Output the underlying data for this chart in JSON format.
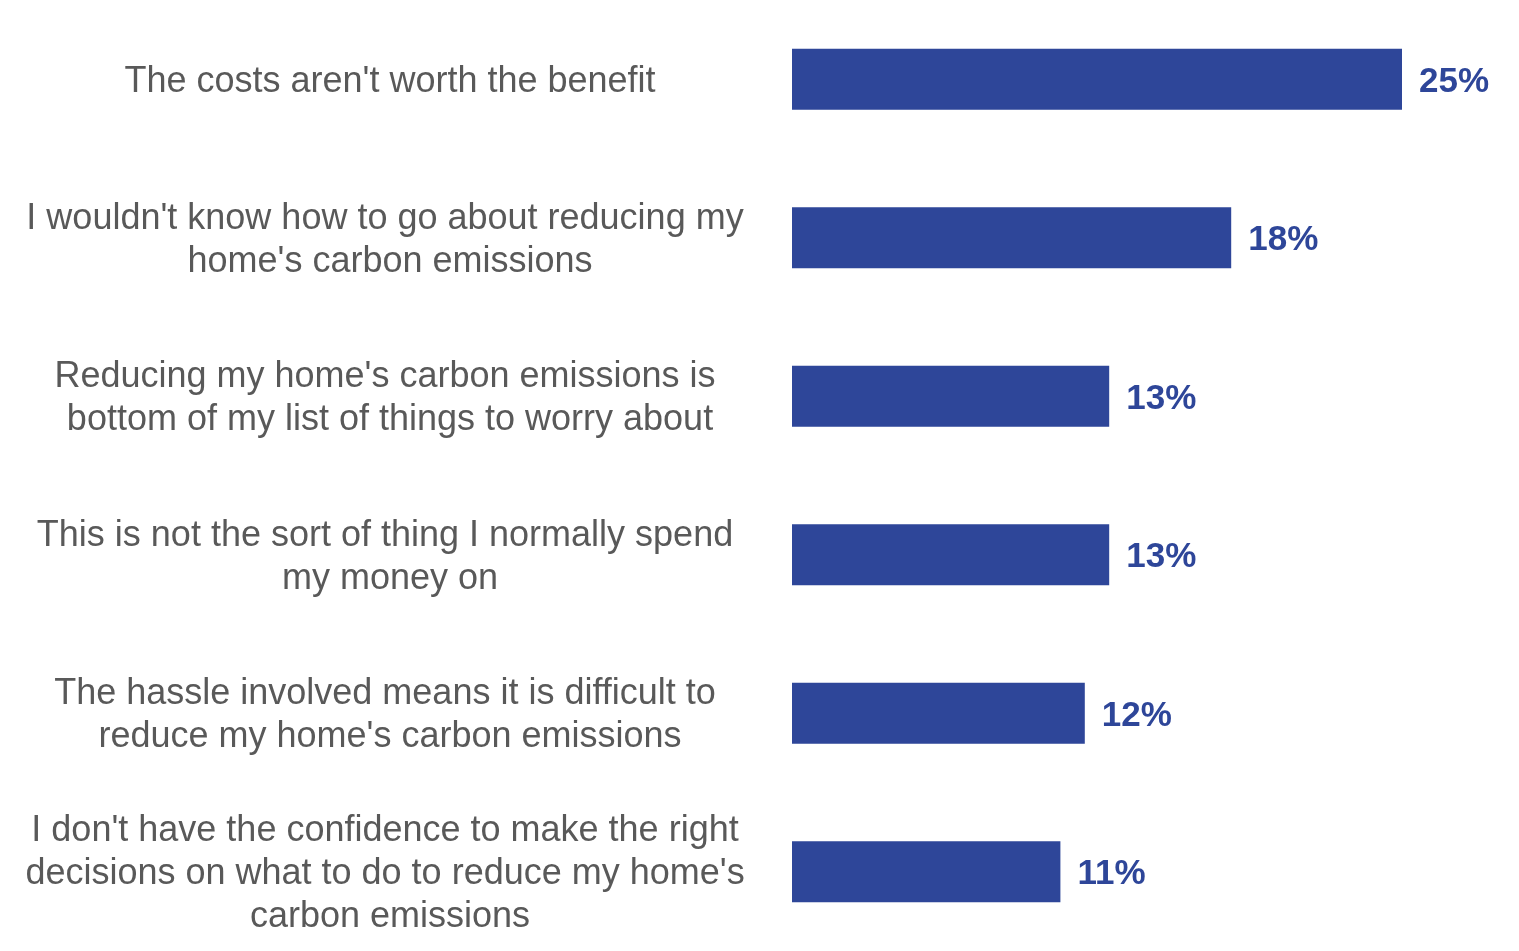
{
  "chart_data": {
    "type": "bar",
    "orientation": "horizontal",
    "categories": [
      "The costs aren't worth the benefit",
      "I wouldn't know how to go about reducing my home's carbon emissions",
      "Reducing my home's carbon emissions is bottom of my list of things to worry about",
      "This is not the sort of thing I normally spend my money on",
      "The hassle involved means it is difficult to reduce my home's carbon emissions",
      "I don't have the confidence to make the right decisions on what to do to reduce my home's carbon emissions"
    ],
    "values": [
      25,
      18,
      13,
      13,
      12,
      11
    ],
    "value_labels": [
      "25%",
      "18%",
      "13%",
      "13%",
      "12%",
      "11%"
    ],
    "color": "#2e4699"
  }
}
